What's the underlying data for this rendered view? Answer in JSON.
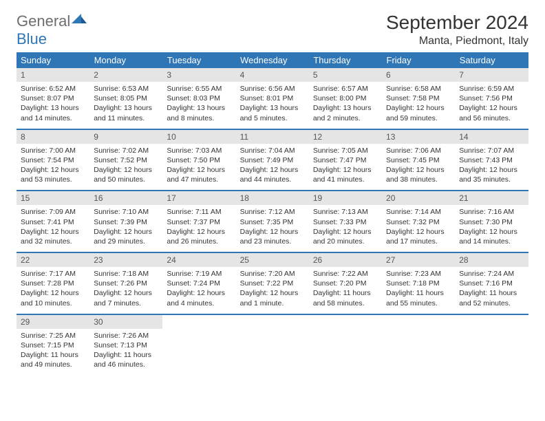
{
  "brand": {
    "word1": "General",
    "word2": "Blue"
  },
  "title": "September 2024",
  "location": "Manta, Piedmont, Italy",
  "colors": {
    "header_bg": "#2f76b6",
    "header_fg": "#ffffff",
    "daynum_bg": "#e5e5e5",
    "rule": "#2f76b6",
    "text": "#333333",
    "logo_gray": "#6e6e6e",
    "logo_blue": "#2f76b6"
  },
  "days_of_week": [
    "Sunday",
    "Monday",
    "Tuesday",
    "Wednesday",
    "Thursday",
    "Friday",
    "Saturday"
  ],
  "weeks": [
    [
      {
        "n": "1",
        "sr": "6:52 AM",
        "ss": "8:07 PM",
        "dl": "13 hours and 14 minutes."
      },
      {
        "n": "2",
        "sr": "6:53 AM",
        "ss": "8:05 PM",
        "dl": "13 hours and 11 minutes."
      },
      {
        "n": "3",
        "sr": "6:55 AM",
        "ss": "8:03 PM",
        "dl": "13 hours and 8 minutes."
      },
      {
        "n": "4",
        "sr": "6:56 AM",
        "ss": "8:01 PM",
        "dl": "13 hours and 5 minutes."
      },
      {
        "n": "5",
        "sr": "6:57 AM",
        "ss": "8:00 PM",
        "dl": "13 hours and 2 minutes."
      },
      {
        "n": "6",
        "sr": "6:58 AM",
        "ss": "7:58 PM",
        "dl": "12 hours and 59 minutes."
      },
      {
        "n": "7",
        "sr": "6:59 AM",
        "ss": "7:56 PM",
        "dl": "12 hours and 56 minutes."
      }
    ],
    [
      {
        "n": "8",
        "sr": "7:00 AM",
        "ss": "7:54 PM",
        "dl": "12 hours and 53 minutes."
      },
      {
        "n": "9",
        "sr": "7:02 AM",
        "ss": "7:52 PM",
        "dl": "12 hours and 50 minutes."
      },
      {
        "n": "10",
        "sr": "7:03 AM",
        "ss": "7:50 PM",
        "dl": "12 hours and 47 minutes."
      },
      {
        "n": "11",
        "sr": "7:04 AM",
        "ss": "7:49 PM",
        "dl": "12 hours and 44 minutes."
      },
      {
        "n": "12",
        "sr": "7:05 AM",
        "ss": "7:47 PM",
        "dl": "12 hours and 41 minutes."
      },
      {
        "n": "13",
        "sr": "7:06 AM",
        "ss": "7:45 PM",
        "dl": "12 hours and 38 minutes."
      },
      {
        "n": "14",
        "sr": "7:07 AM",
        "ss": "7:43 PM",
        "dl": "12 hours and 35 minutes."
      }
    ],
    [
      {
        "n": "15",
        "sr": "7:09 AM",
        "ss": "7:41 PM",
        "dl": "12 hours and 32 minutes."
      },
      {
        "n": "16",
        "sr": "7:10 AM",
        "ss": "7:39 PM",
        "dl": "12 hours and 29 minutes."
      },
      {
        "n": "17",
        "sr": "7:11 AM",
        "ss": "7:37 PM",
        "dl": "12 hours and 26 minutes."
      },
      {
        "n": "18",
        "sr": "7:12 AM",
        "ss": "7:35 PM",
        "dl": "12 hours and 23 minutes."
      },
      {
        "n": "19",
        "sr": "7:13 AM",
        "ss": "7:33 PM",
        "dl": "12 hours and 20 minutes."
      },
      {
        "n": "20",
        "sr": "7:14 AM",
        "ss": "7:32 PM",
        "dl": "12 hours and 17 minutes."
      },
      {
        "n": "21",
        "sr": "7:16 AM",
        "ss": "7:30 PM",
        "dl": "12 hours and 14 minutes."
      }
    ],
    [
      {
        "n": "22",
        "sr": "7:17 AM",
        "ss": "7:28 PM",
        "dl": "12 hours and 10 minutes."
      },
      {
        "n": "23",
        "sr": "7:18 AM",
        "ss": "7:26 PM",
        "dl": "12 hours and 7 minutes."
      },
      {
        "n": "24",
        "sr": "7:19 AM",
        "ss": "7:24 PM",
        "dl": "12 hours and 4 minutes."
      },
      {
        "n": "25",
        "sr": "7:20 AM",
        "ss": "7:22 PM",
        "dl": "12 hours and 1 minute."
      },
      {
        "n": "26",
        "sr": "7:22 AM",
        "ss": "7:20 PM",
        "dl": "11 hours and 58 minutes."
      },
      {
        "n": "27",
        "sr": "7:23 AM",
        "ss": "7:18 PM",
        "dl": "11 hours and 55 minutes."
      },
      {
        "n": "28",
        "sr": "7:24 AM",
        "ss": "7:16 PM",
        "dl": "11 hours and 52 minutes."
      }
    ],
    [
      {
        "n": "29",
        "sr": "7:25 AM",
        "ss": "7:15 PM",
        "dl": "11 hours and 49 minutes."
      },
      {
        "n": "30",
        "sr": "7:26 AM",
        "ss": "7:13 PM",
        "dl": "11 hours and 46 minutes."
      },
      null,
      null,
      null,
      null,
      null
    ]
  ],
  "labels": {
    "sunrise": "Sunrise:",
    "sunset": "Sunset:",
    "daylight": "Daylight:"
  }
}
